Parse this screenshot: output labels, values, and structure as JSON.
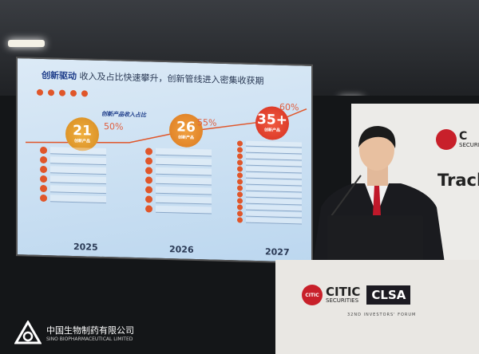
{
  "slide": {
    "title_bold": "创新驱动",
    "title_rest": " 收入及占比快速攀升，创新管线进入密集收获期",
    "subtitle": "创新产品收入占比",
    "milestones": [
      {
        "year": "2025",
        "count": "21",
        "label": "创新产品",
        "share": "50%",
        "items": 6
      },
      {
        "year": "2026",
        "count": "26",
        "label": "创新产品",
        "share": "55%",
        "items": 7
      },
      {
        "year": "2027",
        "count": "35+",
        "label": "创新产品",
        "share": "60%",
        "items": 13
      }
    ],
    "colors": {
      "accent": "#e0562a",
      "title": "#1e3d8a"
    }
  },
  "podium": {
    "brand1": "CITIC",
    "brand1_sub": "SECURITIES",
    "brand2": "CLSA",
    "event": "32ND INVESTORS' FORUM",
    "seal": "CITIC"
  },
  "backdrop": {
    "text": "Track",
    "brand_partial": "C",
    "brand_sub_partial": "SECURI"
  },
  "watermark": {
    "name_cn": "中国生物制药有限公司",
    "name_en": "SINO BIOPHARMACEUTICAL LIMITED"
  }
}
